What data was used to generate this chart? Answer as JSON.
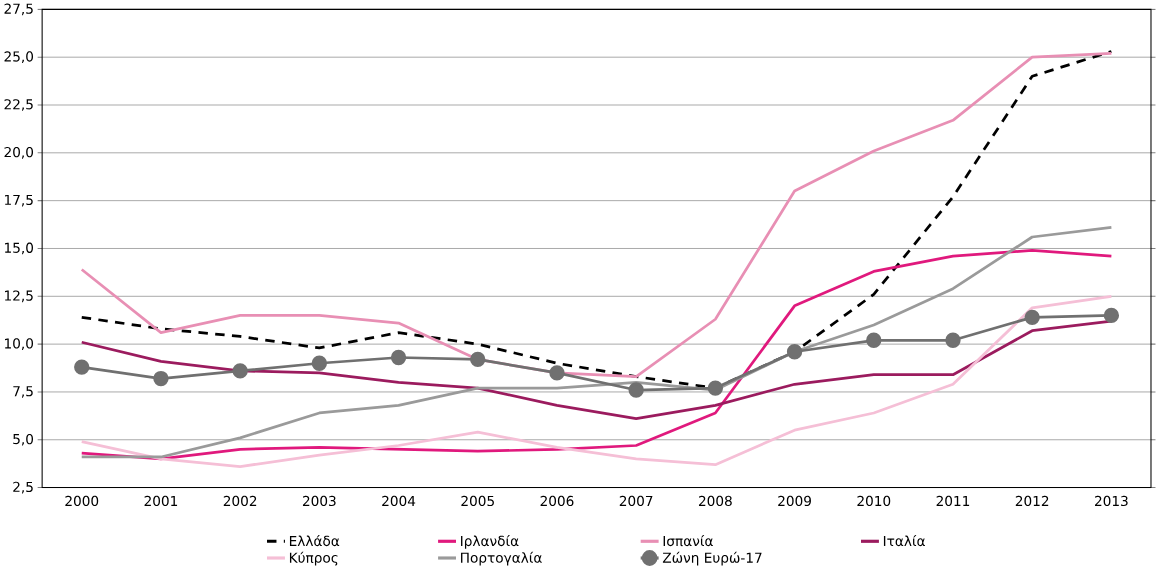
{
  "chart_data": {
    "type": "line",
    "categories": [
      "2000",
      "2001",
      "2002",
      "2003",
      "2004",
      "2005",
      "2006",
      "2007",
      "2008",
      "2009",
      "2010",
      "2011",
      "2012",
      "2013"
    ],
    "series": [
      {
        "name": "Ελλάδα",
        "color": "#000000",
        "line_style": "dashed",
        "values": [
          11.4,
          10.8,
          10.4,
          9.8,
          10.6,
          10.0,
          9.0,
          8.3,
          7.7,
          9.6,
          12.6,
          17.7,
          24.0,
          25.3
        ]
      },
      {
        "name": "Ιρλανδία",
        "color": "#e0197d",
        "values": [
          4.3,
          4.0,
          4.5,
          4.6,
          4.5,
          4.4,
          4.5,
          4.7,
          6.4,
          12.0,
          13.8,
          14.6,
          14.9,
          14.6
        ]
      },
      {
        "name": "Ισπανία",
        "color": "#e88fb4",
        "values": [
          13.9,
          10.6,
          11.5,
          11.5,
          11.1,
          9.2,
          8.5,
          8.3,
          11.3,
          18.0,
          20.1,
          21.7,
          25.0,
          25.2
        ]
      },
      {
        "name": "Ιταλία",
        "color": "#9b1b5e",
        "values": [
          10.1,
          9.1,
          8.6,
          8.5,
          8.0,
          7.7,
          6.8,
          6.1,
          6.8,
          7.9,
          8.4,
          8.4,
          10.7,
          11.2
        ]
      },
      {
        "name": "Κύπρος",
        "color": "#f5bfd6",
        "values": [
          4.9,
          4.0,
          3.6,
          4.2,
          4.7,
          5.4,
          4.6,
          4.0,
          3.7,
          5.5,
          6.4,
          7.9,
          11.9,
          12.5
        ]
      },
      {
        "name": "Πορτογαλία",
        "color": "#9a9a9a",
        "values": [
          4.1,
          4.1,
          5.1,
          6.4,
          6.8,
          7.7,
          7.7,
          8.0,
          7.6,
          9.6,
          11.0,
          12.9,
          15.6,
          16.1
        ]
      },
      {
        "name": "Ζώνη Ευρώ-17",
        "color": "#707070",
        "marker": "circle",
        "values": [
          8.8,
          8.2,
          8.6,
          9.0,
          9.3,
          9.2,
          8.5,
          7.6,
          7.7,
          9.6,
          10.2,
          10.2,
          11.4,
          11.5
        ]
      }
    ],
    "ylim": [
      2.5,
      27.5
    ],
    "yticks": [
      {
        "value": 2.5,
        "label": "2,5"
      },
      {
        "value": 5,
        "label": "5,0"
      },
      {
        "value": 7.5,
        "label": "7,5"
      },
      {
        "value": 10,
        "label": "10,0"
      },
      {
        "value": 12.5,
        "label": "12,5"
      },
      {
        "value": 15,
        "label": "15,0"
      },
      {
        "value": 17.5,
        "label": "17,5"
      },
      {
        "value": 20,
        "label": "20,0"
      },
      {
        "value": 22.5,
        "label": "22,5"
      },
      {
        "value": 25,
        "label": "25,0"
      },
      {
        "value": 27.5,
        "label": "27,5"
      }
    ],
    "grid": "y",
    "legend": "bottom"
  }
}
